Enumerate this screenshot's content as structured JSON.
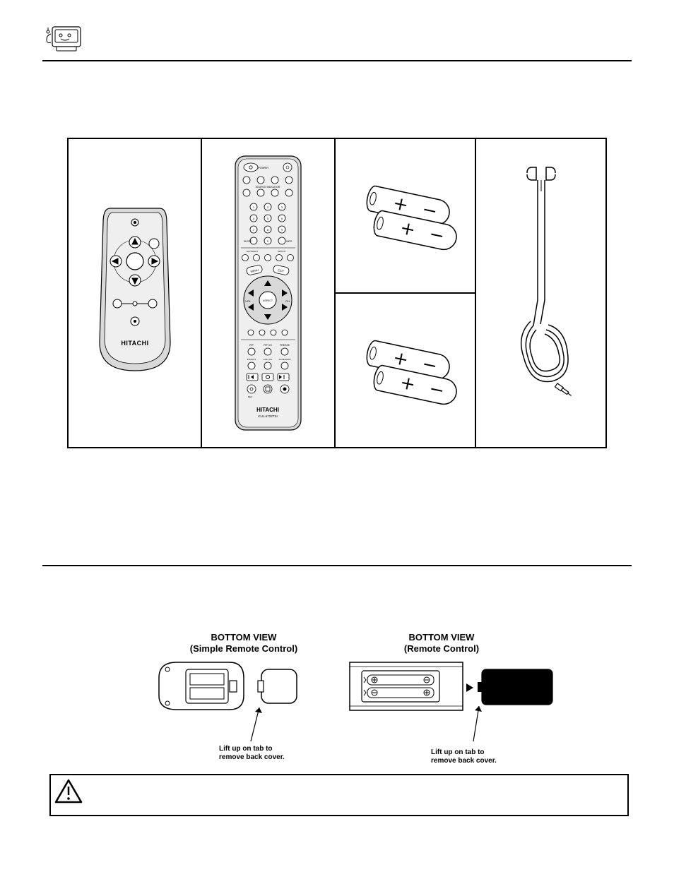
{
  "brand": "HITACHI",
  "remote_model": "CLU-5722TSI",
  "bottom_view": {
    "left_title_line1": "BOTTOM VIEW",
    "left_title_line2": "(Simple Remote Control)",
    "right_title_line1": "BOTTOM VIEW",
    "right_title_line2": "(Remote Control)",
    "lift_tab_text": "Lift up on tab to\nremove back cover."
  },
  "colors": {
    "stroke": "#000000",
    "fill_light": "#ffffff",
    "fill_gray": "#d9d9d9",
    "fill_gray2": "#cfcfcf",
    "fill_gray3": "#bfbfbf",
    "bg": "#ffffff"
  },
  "remote_buttons": {
    "row_misc": [
      "SLEEP",
      "INFO"
    ],
    "row_mid": [
      "VOL",
      "CH"
    ],
    "small_row": [
      "PIP",
      "PIP CH",
      "FREEZE"
    ],
    "tiny_row": [
      "INSTANT",
      "LAST CH",
      "ACCESS/AV"
    ],
    "nav": [
      "MENU",
      "EXIT",
      "ASPECT"
    ]
  }
}
